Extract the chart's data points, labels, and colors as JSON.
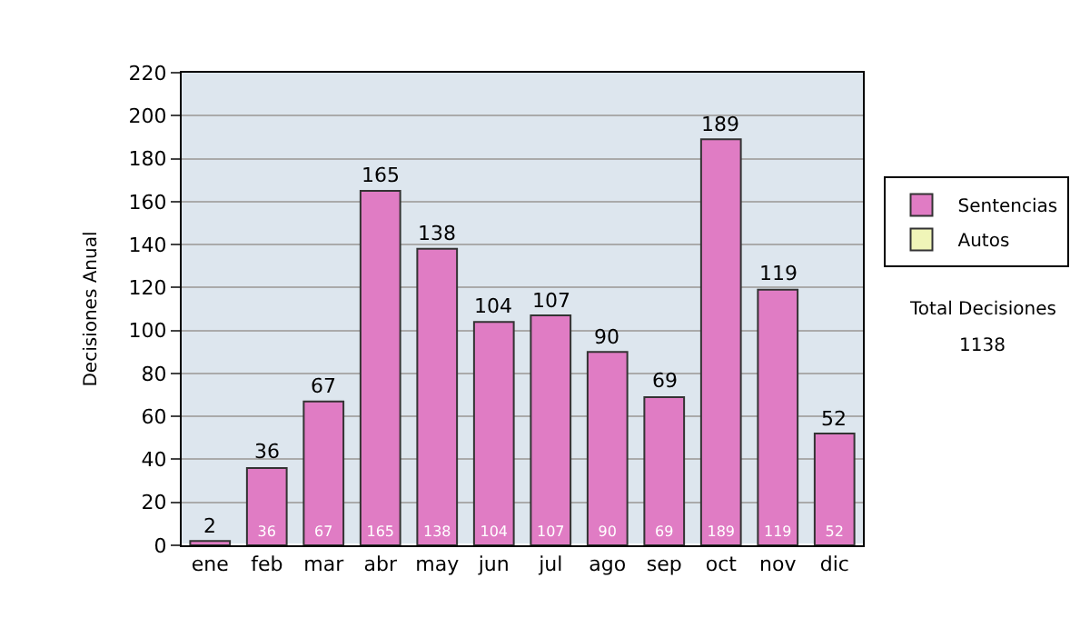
{
  "chart_data": {
    "type": "bar",
    "stacked": true,
    "ylabel": "Decisiones Anual",
    "categories": [
      "ene",
      "feb",
      "mar",
      "abr",
      "may",
      "jun",
      "jul",
      "ago",
      "sep",
      "oct",
      "nov",
      "dic"
    ],
    "series": [
      {
        "name": "Sentencias",
        "color": "#e07cc4",
        "values": [
          2,
          36,
          67,
          165,
          138,
          104,
          107,
          90,
          69,
          189,
          119,
          52
        ],
        "value_labels": [
          null,
          "36",
          "67",
          "165",
          "138",
          "104",
          "107",
          "90",
          "69",
          "189",
          "119",
          "52"
        ]
      },
      {
        "name": "Autos",
        "color": "#f0f5b8",
        "values": [
          null,
          null,
          null,
          null,
          null,
          null,
          null,
          null,
          null,
          null,
          null,
          null
        ]
      }
    ],
    "totals": [
      "2",
      "36",
      "67",
      "165",
      "138",
      "104",
      "107",
      "90",
      "69",
      "189",
      "119",
      "52"
    ],
    "ylim": [
      0,
      220
    ],
    "yticks": [
      0,
      20,
      40,
      60,
      80,
      100,
      120,
      140,
      160,
      180,
      200,
      220
    ],
    "grid": "y",
    "legend": "right",
    "annotations": [
      "Total Decisiones",
      "1138"
    ]
  }
}
